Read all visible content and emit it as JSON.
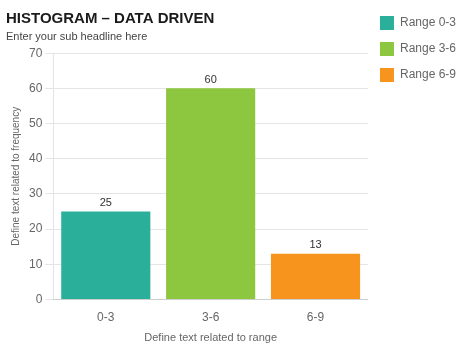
{
  "chart_data": {
    "type": "bar",
    "title": "HISTOGRAM – DATA DRIVEN",
    "subtitle": "Enter your sub headline here",
    "categories": [
      "0-3",
      "3-6",
      "6-9"
    ],
    "series": [
      {
        "name": "Range 0-3",
        "color": "#2ab09a",
        "values": [
          25,
          null,
          null
        ]
      },
      {
        "name": "Range 3-6",
        "color": "#8dc63f",
        "values": [
          null,
          60,
          null
        ]
      },
      {
        "name": "Range 6-9",
        "color": "#f7941d",
        "values": [
          null,
          null,
          13
        ]
      }
    ],
    "xlabel": "Define text related to range",
    "ylabel": "Define text related to frequency",
    "ylim": [
      0,
      70
    ],
    "yticks": [
      0,
      10,
      20,
      30,
      40,
      50,
      60,
      70
    ],
    "grid": true,
    "legend": "right",
    "data_labels": true
  }
}
